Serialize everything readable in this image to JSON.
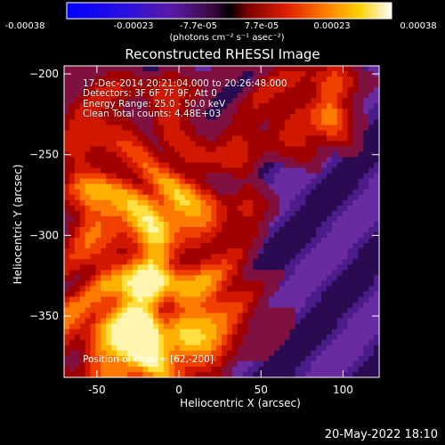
{
  "colorbar": {
    "ticks": [
      "-0.00038",
      "-0.00023",
      "-7.7e-05",
      "7.7e-05",
      "0.00023",
      "0.00038"
    ],
    "unit": "(photons cm⁻² s⁻¹ asec⁻²)",
    "range": [
      -0.00038,
      0.00038
    ]
  },
  "title": "Reconstructed RHESSI Image",
  "info": {
    "time": "17-Dec-2014 20:21:04.000 to 20:26:48.000",
    "detectors": "Detectors: 3F 6F 7F 9F, Att 0",
    "energy": "Energy Range: 25.0 - 50.0 keV",
    "clean": "Clean     Total counts: 4.48E+03"
  },
  "peak": "Position of Peak = [62,-200]",
  "footer": "20-May-2022 18:10",
  "chart_data": {
    "type": "heatmap",
    "title": "Reconstructed RHESSI Image",
    "xlabel": "Heliocentric X (arcsec)",
    "ylabel": "Heliocentric Y (arcsec)",
    "xlim": [
      -70,
      122
    ],
    "ylim": [
      -388,
      -195
    ],
    "xticks": [
      -50,
      0,
      50,
      100
    ],
    "yticks": [
      -200,
      -250,
      -300,
      -350
    ],
    "colormap": "RHESSI red-orange-yellow / purple-blue diverging",
    "peak_position": [
      62,
      -200
    ],
    "energy_range_kev": [
      25.0,
      50.0
    ],
    "total_counts": 4480
  }
}
